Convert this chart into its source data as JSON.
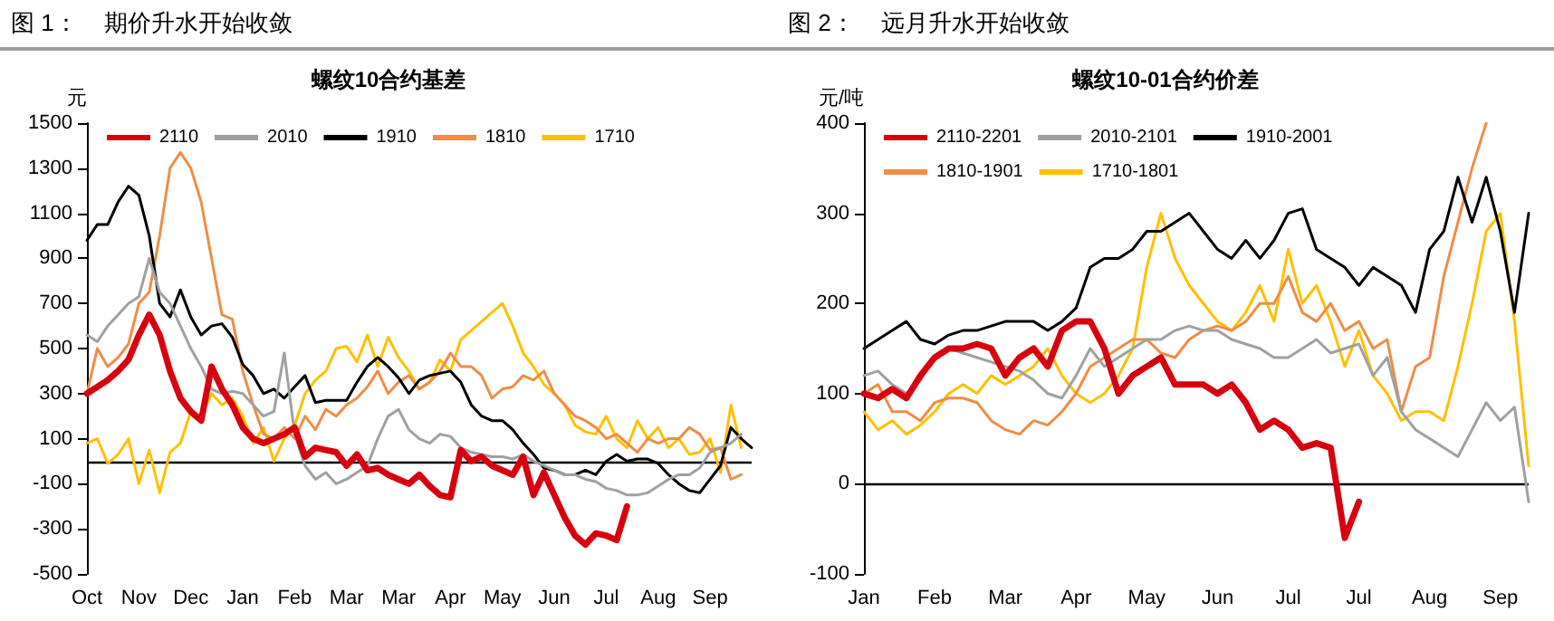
{
  "chart_data": [
    {
      "type": "line",
      "title": "螺纹10合约基差",
      "ylabel": "元",
      "annotations": [
        "图 1：    期价升水开始收敛"
      ],
      "categories": [
        "Oct",
        null,
        null,
        null,
        null,
        "Nov",
        null,
        null,
        null,
        null,
        "Dec",
        null,
        null,
        null,
        null,
        "Jan",
        null,
        null,
        null,
        null,
        "Feb",
        null,
        null,
        null,
        null,
        "Mar",
        null,
        null,
        null,
        null,
        "Mar",
        null,
        null,
        null,
        null,
        "Apr",
        null,
        null,
        null,
        null,
        "May",
        null,
        null,
        null,
        null,
        "Jun",
        null,
        null,
        null,
        null,
        "Jul",
        null,
        null,
        null,
        null,
        "Aug",
        null,
        null,
        null,
        null,
        "Sep",
        null,
        null,
        null,
        null
      ],
      "ylim": [
        -500,
        1500
      ],
      "yticks": [
        -500,
        -300,
        -100,
        100,
        300,
        500,
        700,
        900,
        1100,
        1300,
        1500
      ],
      "ref_lines": [
        {
          "axis": "y",
          "value": 0,
          "color": "#000000"
        }
      ],
      "legend": "top",
      "grid": false,
      "marker": "none",
      "series": [
        {
          "name": "2110",
          "color": "#d7000f",
          "values": [
            300,
            330,
            360,
            400,
            450,
            560,
            650,
            560,
            400,
            280,
            220,
            180,
            420,
            320,
            250,
            150,
            100,
            80,
            100,
            120,
            150,
            20,
            60,
            50,
            40,
            -20,
            30,
            -40,
            -30,
            -60,
            -80,
            -100,
            -60,
            -110,
            -150,
            -160,
            50,
            0,
            20,
            -20,
            -40,
            -60,
            20,
            -150,
            -50,
            -150,
            -250,
            -330,
            -370,
            -320,
            -330,
            -350,
            -200,
            null,
            null,
            null,
            null,
            null,
            null,
            null,
            null,
            null,
            null,
            null,
            null
          ]
        },
        {
          "name": "2010",
          "color": "#a0a0a0",
          "values": [
            560,
            530,
            600,
            650,
            700,
            730,
            900,
            750,
            700,
            600,
            500,
            420,
            320,
            300,
            310,
            300,
            250,
            200,
            220,
            480,
            120,
            -20,
            -80,
            -50,
            -100,
            -80,
            -50,
            -20,
            100,
            200,
            230,
            140,
            100,
            80,
            120,
            110,
            60,
            40,
            30,
            20,
            20,
            10,
            30,
            0,
            -20,
            -40,
            -60,
            -60,
            -80,
            -90,
            -120,
            -130,
            -150,
            -150,
            -140,
            -110,
            -80,
            -60,
            -60,
            -30,
            40,
            60,
            80,
            120,
            null
          ]
        },
        {
          "name": "1910",
          "color": "#000000",
          "values": [
            980,
            1050,
            1050,
            1150,
            1220,
            1180,
            1000,
            700,
            640,
            760,
            640,
            560,
            600,
            610,
            550,
            430,
            380,
            300,
            320,
            280,
            330,
            380,
            260,
            270,
            270,
            270,
            350,
            420,
            460,
            420,
            370,
            300,
            360,
            380,
            390,
            400,
            350,
            250,
            200,
            180,
            180,
            140,
            80,
            30,
            -30,
            -40,
            -60,
            -60,
            -40,
            -60,
            0,
            30,
            0,
            10,
            10,
            -10,
            -60,
            -100,
            -130,
            -140,
            -80,
            -20,
            150,
            100,
            60
          ]
        },
        {
          "name": "1810",
          "color": "#f08c46",
          "values": [
            300,
            500,
            420,
            460,
            520,
            700,
            750,
            1000,
            1300,
            1370,
            1300,
            1150,
            900,
            650,
            630,
            400,
            250,
            120,
            100,
            150,
            100,
            200,
            140,
            230,
            200,
            250,
            280,
            330,
            400,
            300,
            350,
            380,
            320,
            350,
            400,
            480,
            420,
            420,
            380,
            280,
            320,
            330,
            380,
            360,
            400,
            300,
            250,
            200,
            180,
            150,
            100,
            120,
            80,
            40,
            100,
            80,
            100,
            100,
            150,
            120,
            50,
            60,
            -80,
            -60,
            null
          ]
        },
        {
          "name": "1710",
          "color": "#ffc000",
          "values": [
            80,
            100,
            -10,
            30,
            100,
            -100,
            50,
            -140,
            40,
            80,
            220,
            200,
            300,
            250,
            280,
            200,
            80,
            150,
            0,
            100,
            160,
            300,
            360,
            400,
            500,
            510,
            440,
            560,
            420,
            550,
            460,
            400,
            320,
            350,
            450,
            400,
            540,
            580,
            620,
            660,
            700,
            600,
            480,
            420,
            340,
            300,
            250,
            160,
            130,
            120,
            200,
            100,
            60,
            180,
            100,
            150,
            60,
            100,
            30,
            40,
            100,
            -50,
            250,
            60,
            null
          ]
        }
      ]
    },
    {
      "type": "line",
      "title": "螺纹10-01合约价差",
      "ylabel": "元/吨",
      "annotations": [
        "图 2：    远月升水开始收敛"
      ],
      "categories": [
        "Jan",
        null,
        null,
        null,
        null,
        "Feb",
        null,
        null,
        null,
        null,
        "Mar",
        null,
        null,
        null,
        null,
        "Apr",
        null,
        null,
        null,
        null,
        "May",
        null,
        null,
        null,
        null,
        "Jun",
        null,
        null,
        null,
        null,
        "Jul",
        null,
        null,
        null,
        null,
        "Jul",
        null,
        null,
        null,
        null,
        "Aug",
        null,
        null,
        null,
        null,
        "Sep",
        null,
        null
      ],
      "ylim": [
        -100,
        400
      ],
      "yticks": [
        -100,
        0,
        100,
        200,
        300,
        400
      ],
      "ref_lines": [
        {
          "axis": "y",
          "value": 0,
          "color": "#000000"
        }
      ],
      "legend": "top",
      "grid": false,
      "marker": "none",
      "series": [
        {
          "name": "2110-2201",
          "color": "#d7000f",
          "values": [
            100,
            95,
            105,
            95,
            120,
            140,
            150,
            150,
            155,
            150,
            120,
            140,
            150,
            130,
            170,
            180,
            180,
            150,
            100,
            120,
            130,
            140,
            110,
            110,
            110,
            100,
            110,
            90,
            60,
            70,
            60,
            40,
            45,
            40,
            -60,
            -20,
            null,
            null,
            null,
            null,
            null,
            null,
            null,
            null,
            null,
            null,
            null,
            null
          ]
        },
        {
          "name": "2010-2101",
          "color": "#a0a0a0",
          "values": [
            120,
            125,
            110,
            100,
            115,
            140,
            150,
            145,
            140,
            135,
            130,
            125,
            115,
            100,
            95,
            120,
            150,
            130,
            140,
            150,
            160,
            160,
            170,
            175,
            170,
            170,
            160,
            155,
            150,
            140,
            140,
            150,
            160,
            145,
            150,
            155,
            120,
            140,
            80,
            60,
            50,
            40,
            30,
            60,
            90,
            70,
            85,
            -20
          ]
        },
        {
          "name": "1910-2001",
          "color": "#000000",
          "values": [
            150,
            160,
            170,
            180,
            160,
            155,
            165,
            170,
            170,
            175,
            180,
            180,
            180,
            170,
            180,
            195,
            240,
            250,
            250,
            260,
            280,
            280,
            290,
            300,
            280,
            260,
            250,
            270,
            250,
            270,
            300,
            305,
            260,
            250,
            240,
            220,
            240,
            230,
            220,
            190,
            260,
            280,
            340,
            290,
            340,
            280,
            190,
            300
          ]
        },
        {
          "name": "1810-1901",
          "color": "#f08c46",
          "values": [
            100,
            110,
            80,
            80,
            70,
            90,
            95,
            95,
            90,
            70,
            60,
            55,
            70,
            65,
            80,
            100,
            130,
            140,
            150,
            160,
            160,
            145,
            140,
            160,
            170,
            175,
            170,
            180,
            200,
            200,
            230,
            190,
            180,
            200,
            170,
            180,
            150,
            160,
            80,
            130,
            140,
            230,
            290,
            350,
            400,
            null,
            null,
            null
          ]
        },
        {
          "name": "1710-1801",
          "color": "#ffc000",
          "values": [
            80,
            60,
            70,
            55,
            65,
            80,
            100,
            110,
            100,
            120,
            110,
            120,
            130,
            150,
            120,
            100,
            90,
            100,
            120,
            150,
            240,
            300,
            250,
            220,
            200,
            180,
            170,
            190,
            220,
            180,
            260,
            200,
            220,
            180,
            130,
            170,
            120,
            100,
            70,
            80,
            80,
            70,
            130,
            200,
            280,
            300,
            180,
            20
          ]
        }
      ]
    }
  ]
}
